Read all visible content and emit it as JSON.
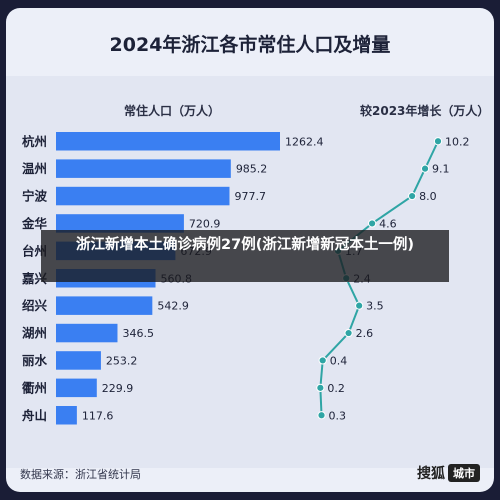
{
  "title": "2024年浙江各市常住人口及增量",
  "headers": {
    "population": "常住人口（万人）",
    "growth": "较2023年增长（万人）"
  },
  "overlay_text": "浙江新增本土确诊病例27例(浙江新增新冠本土一例)",
  "source": "数据来源：浙江省统计局",
  "brand": {
    "name": "搜狐",
    "tag": "城市"
  },
  "colors": {
    "bar": "#3a7ff2",
    "line": "#2fa5a5",
    "background": "#eceff8",
    "outer": "#1a1d36"
  },
  "chart_data": {
    "type": "bar",
    "title": "2024年浙江各市常住人口及增量",
    "categories": [
      "杭州",
      "温州",
      "宁波",
      "金华",
      "台州",
      "嘉兴",
      "绍兴",
      "湖州",
      "丽水",
      "衢州",
      "舟山"
    ],
    "series": [
      {
        "name": "常住人口（万人）",
        "type": "bar",
        "values": [
          1262.4,
          985.2,
          977.7,
          720.9,
          672.9,
          560.8,
          542.9,
          346.5,
          253.2,
          229.9,
          117.6
        ]
      },
      {
        "name": "较2023年增长（万人）",
        "type": "line",
        "values": [
          10.2,
          9.1,
          8.0,
          4.6,
          1.7,
          2.4,
          3.5,
          2.6,
          0.4,
          0.2,
          0.3
        ]
      }
    ],
    "population_labels": [
      "1262.4",
      "985.2",
      "977.7",
      "720.9",
      "672.9",
      "560.8",
      "542.9",
      "346.5",
      "253.2",
      "229.9",
      "117.6"
    ],
    "growth_labels": [
      "10.2",
      "9.1",
      "8.0",
      "4.6",
      "1.7",
      "2.4",
      "3.5",
      "2.6",
      "0.4",
      "0.2",
      "0.3"
    ],
    "legend": "none",
    "grid": false
  }
}
